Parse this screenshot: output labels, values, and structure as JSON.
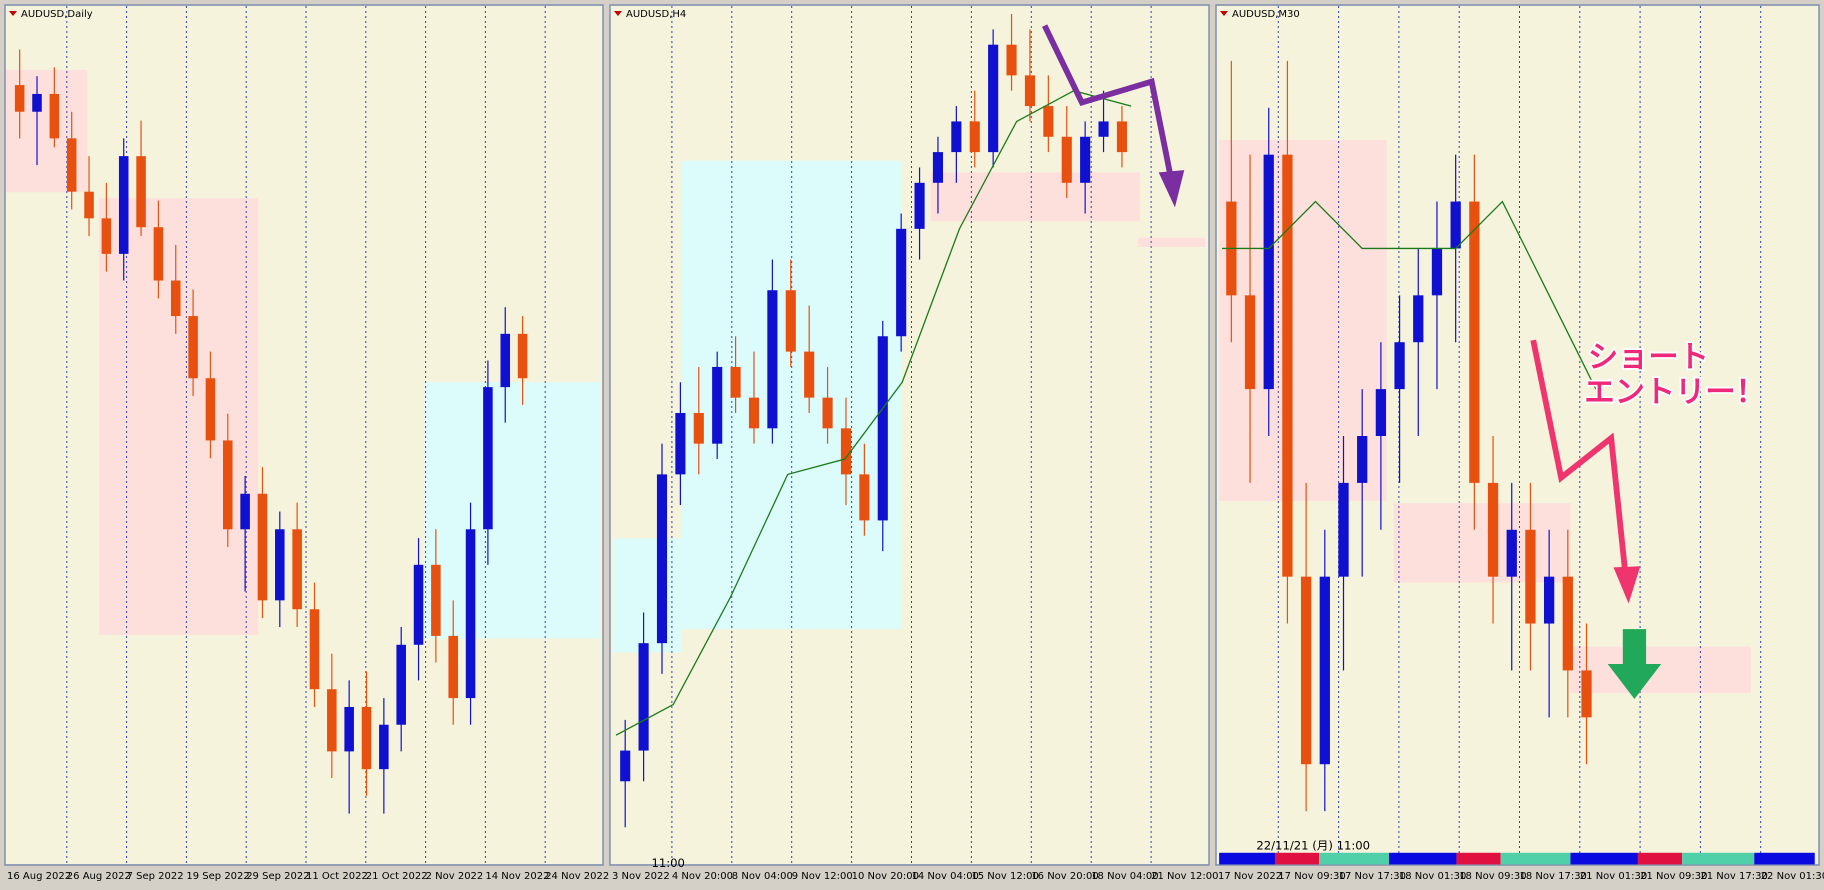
{
  "panels": [
    {
      "title": "AUDUSD,Daily",
      "x_labels": [
        "16 Aug 2022",
        "26 Aug 2022",
        "7 Sep 2022",
        "19 Sep 2022",
        "29 Sep 2022",
        "11 Oct 2022",
        "21 Oct 2022",
        "2 Nov 2022",
        "14 Nov 2022",
        "24 Nov 2022"
      ],
      "ylim": [
        0.625,
        0.72
      ],
      "candles": [
        [
          0.712,
          0.716,
          0.706,
          0.709
        ],
        [
          0.709,
          0.713,
          0.703,
          0.711
        ],
        [
          0.711,
          0.714,
          0.705,
          0.706
        ],
        [
          0.706,
          0.709,
          0.698,
          0.7
        ],
        [
          0.7,
          0.704,
          0.695,
          0.697
        ],
        [
          0.697,
          0.701,
          0.691,
          0.693
        ],
        [
          0.693,
          0.706,
          0.69,
          0.704
        ],
        [
          0.704,
          0.708,
          0.695,
          0.696
        ],
        [
          0.696,
          0.699,
          0.688,
          0.69
        ],
        [
          0.69,
          0.694,
          0.684,
          0.686
        ],
        [
          0.686,
          0.689,
          0.677,
          0.679
        ],
        [
          0.679,
          0.682,
          0.67,
          0.672
        ],
        [
          0.672,
          0.675,
          0.66,
          0.662
        ],
        [
          0.662,
          0.668,
          0.655,
          0.666
        ],
        [
          0.666,
          0.669,
          0.652,
          0.654
        ],
        [
          0.654,
          0.664,
          0.651,
          0.662
        ],
        [
          0.662,
          0.665,
          0.651,
          0.653
        ],
        [
          0.653,
          0.656,
          0.642,
          0.644
        ],
        [
          0.644,
          0.648,
          0.634,
          0.637
        ],
        [
          0.637,
          0.645,
          0.63,
          0.642
        ],
        [
          0.642,
          0.646,
          0.632,
          0.635
        ],
        [
          0.635,
          0.643,
          0.63,
          0.64
        ],
        [
          0.64,
          0.651,
          0.637,
          0.649
        ],
        [
          0.649,
          0.661,
          0.645,
          0.658
        ],
        [
          0.658,
          0.662,
          0.647,
          0.65
        ],
        [
          0.65,
          0.654,
          0.64,
          0.643
        ],
        [
          0.643,
          0.665,
          0.64,
          0.662
        ],
        [
          0.662,
          0.681,
          0.658,
          0.678
        ],
        [
          0.678,
          0.687,
          0.674,
          0.684
        ],
        [
          0.684,
          0.686,
          0.676,
          0.679
        ]
      ]
    },
    {
      "title": "AUDUSD,H4",
      "x_labels": [
        "3 Nov 2022",
        "4 Nov 20:00",
        "8 Nov 04:00",
        "9 Nov 12:00",
        "10 Nov 20:00",
        "14 Nov 04:00",
        "15 Nov 12:00",
        "16 Nov 20:00",
        "18 Nov 04:00",
        "21 Nov 12:00"
      ],
      "ylim": [
        0.625,
        0.68
      ],
      "candles": [
        [
          0.63,
          0.634,
          0.627,
          0.632
        ],
        [
          0.632,
          0.641,
          0.63,
          0.639
        ],
        [
          0.639,
          0.652,
          0.637,
          0.65
        ],
        [
          0.65,
          0.656,
          0.648,
          0.654
        ],
        [
          0.654,
          0.657,
          0.65,
          0.652
        ],
        [
          0.652,
          0.658,
          0.651,
          0.657
        ],
        [
          0.657,
          0.659,
          0.654,
          0.655
        ],
        [
          0.655,
          0.658,
          0.652,
          0.653
        ],
        [
          0.653,
          0.664,
          0.652,
          0.662
        ],
        [
          0.662,
          0.664,
          0.657,
          0.658
        ],
        [
          0.658,
          0.661,
          0.654,
          0.655
        ],
        [
          0.655,
          0.657,
          0.652,
          0.653
        ],
        [
          0.653,
          0.655,
          0.648,
          0.65
        ],
        [
          0.65,
          0.652,
          0.646,
          0.647
        ],
        [
          0.647,
          0.66,
          0.645,
          0.659
        ],
        [
          0.659,
          0.667,
          0.658,
          0.666
        ],
        [
          0.666,
          0.67,
          0.664,
          0.669
        ],
        [
          0.669,
          0.672,
          0.667,
          0.671
        ],
        [
          0.671,
          0.674,
          0.669,
          0.673
        ],
        [
          0.673,
          0.675,
          0.67,
          0.671
        ],
        [
          0.671,
          0.679,
          0.67,
          0.678
        ],
        [
          0.678,
          0.68,
          0.675,
          0.676
        ],
        [
          0.676,
          0.679,
          0.673,
          0.674
        ],
        [
          0.674,
          0.676,
          0.671,
          0.672
        ],
        [
          0.672,
          0.674,
          0.668,
          0.669
        ],
        [
          0.669,
          0.673,
          0.667,
          0.672
        ],
        [
          0.672,
          0.675,
          0.671,
          0.673
        ],
        [
          0.673,
          0.674,
          0.67,
          0.671
        ]
      ],
      "ma": [
        0.633,
        0.635,
        0.642,
        0.65,
        0.651,
        0.656,
        0.666,
        0.673,
        0.675,
        0.674
      ]
    },
    {
      "title": "AUDUSD,M30",
      "x_labels": [
        "17 Nov 2022",
        "17 Nov 09:30",
        "17 Nov 17:30",
        "18 Nov 01:30",
        "18 Nov 09:30",
        "18 Nov 17:30",
        "21 Nov 01:30",
        "21 Nov 09:30",
        "21 Nov 17:30",
        "22 Nov 01:30"
      ],
      "ylim": [
        0.66,
        0.678
      ],
      "candles": [
        [
          0.674,
          0.677,
          0.671,
          0.672
        ],
        [
          0.672,
          0.675,
          0.668,
          0.67
        ],
        [
          0.67,
          0.676,
          0.669,
          0.675
        ],
        [
          0.675,
          0.677,
          0.665,
          0.666
        ],
        [
          0.666,
          0.668,
          0.661,
          0.662
        ],
        [
          0.662,
          0.667,
          0.661,
          0.666
        ],
        [
          0.666,
          0.669,
          0.664,
          0.668
        ],
        [
          0.668,
          0.67,
          0.666,
          0.669
        ],
        [
          0.669,
          0.671,
          0.667,
          0.67
        ],
        [
          0.67,
          0.672,
          0.668,
          0.671
        ],
        [
          0.671,
          0.673,
          0.669,
          0.672
        ],
        [
          0.672,
          0.674,
          0.67,
          0.673
        ],
        [
          0.673,
          0.675,
          0.671,
          0.674
        ],
        [
          0.674,
          0.675,
          0.667,
          0.668
        ],
        [
          0.668,
          0.669,
          0.665,
          0.666
        ],
        [
          0.666,
          0.668,
          0.664,
          0.667
        ],
        [
          0.667,
          0.668,
          0.664,
          0.665
        ],
        [
          0.665,
          0.667,
          0.663,
          0.666
        ],
        [
          0.666,
          0.667,
          0.663,
          0.664
        ],
        [
          0.664,
          0.665,
          0.662,
          0.663
        ]
      ],
      "ma": [
        0.673,
        0.673,
        0.674,
        0.673,
        0.673,
        0.673,
        0.674,
        0.672,
        0.67
      ]
    }
  ],
  "annotation": {
    "line1": "ショート",
    "line2": "エントリー！"
  },
  "status": {
    "timestamp": "22/11/21 (月) 11:00",
    "time": "11:00"
  }
}
